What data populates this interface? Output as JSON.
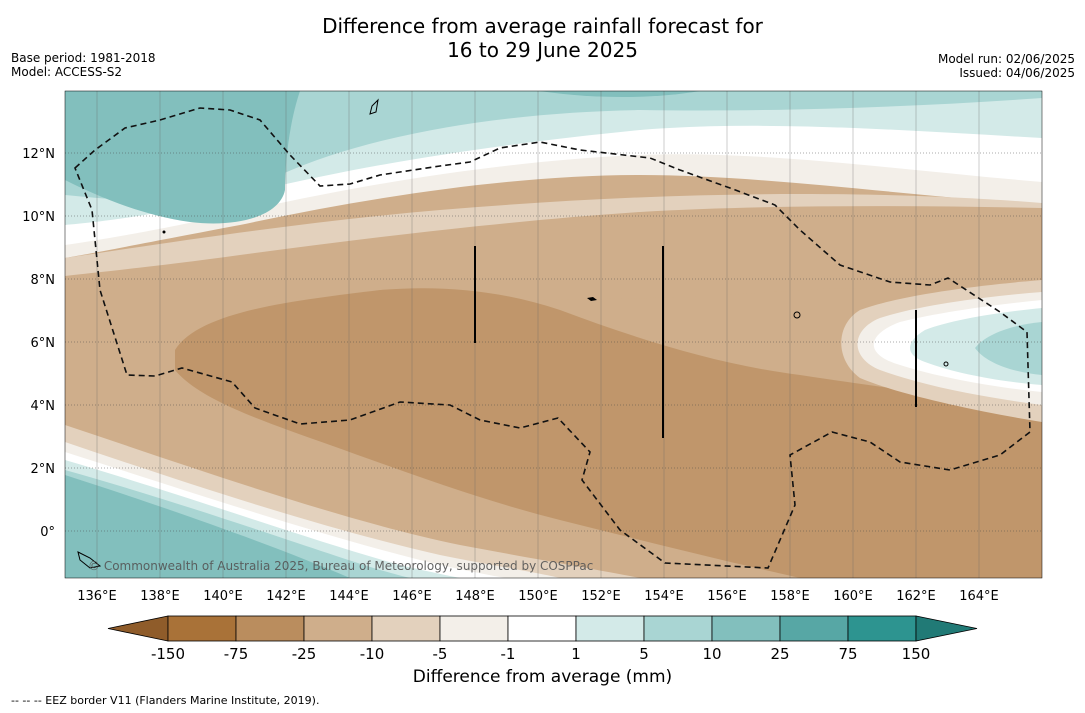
{
  "title_line1": "Difference from average rainfall forecast for",
  "title_line2": "16 to 29 June 2025",
  "base_period": "Base period: 1981-2018",
  "model": "Model: ACCESS-S2",
  "model_run": "Model run: 02/06/2025",
  "issued": "Issued: 04/06/2025",
  "copyright": "© Commonwealth of Australia 2025, Bureau of Meteorology, supported by COSPPac",
  "lon_labels": [
    "136°E",
    "138°E",
    "140°E",
    "142°E",
    "144°E",
    "146°E",
    "148°E",
    "150°E",
    "152°E",
    "154°E",
    "156°E",
    "158°E",
    "160°E",
    "162°E",
    "164°E"
  ],
  "lat_labels": [
    "12°N",
    "10°N",
    "8°N",
    "6°N",
    "4°N",
    "2°N",
    "0°"
  ],
  "colorbar": {
    "ticks": [
      "-150",
      "-75",
      "-25",
      "-10",
      "-5",
      "-1",
      "1",
      "5",
      "10",
      "25",
      "75",
      "150"
    ],
    "colors": [
      "#a97238",
      "#ba8d5e",
      "#cfae8b",
      "#e3d1bd",
      "#f3efe9",
      "#ffffff",
      "#d3eae8",
      "#a9d5d3",
      "#82bfbd",
      "#57a7a5",
      "#2d9490"
    ],
    "under_color": "#8f5c2a",
    "over_color": "#217a76",
    "label": "Difference from average (mm)"
  },
  "legend_note": "--  --  -- EEZ border V11 (Flanders Marine Institute, 2019)."
}
